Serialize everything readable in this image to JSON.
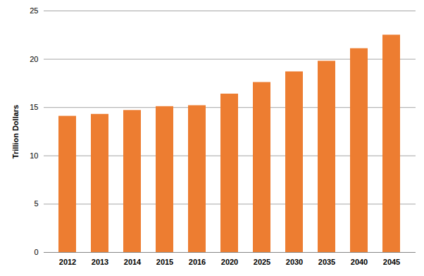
{
  "chart_data": {
    "type": "bar",
    "y_label": "Trillion Dollars",
    "categories": [
      "2012",
      "2013",
      "2014",
      "2015",
      "2016",
      "2020",
      "2025",
      "2030",
      "2035",
      "2040",
      "2045"
    ],
    "values": [
      14.1,
      14.3,
      14.7,
      15.1,
      15.2,
      16.4,
      17.6,
      18.7,
      19.8,
      21.1,
      22.5
    ],
    "color": "#ed7d31",
    "ylim": [
      0,
      25
    ],
    "yticks": [
      0,
      5,
      10,
      15,
      20,
      25
    ],
    "grid": true
  }
}
